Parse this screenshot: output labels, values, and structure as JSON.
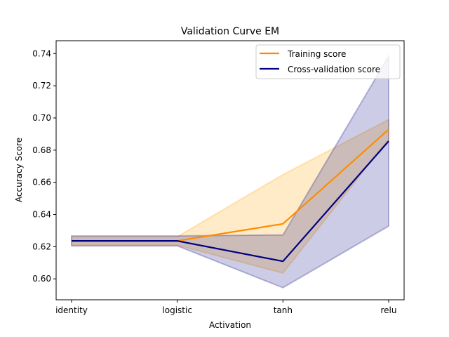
{
  "chart_data": {
    "type": "line",
    "title": "Validation Curve EM",
    "xlabel": "Activation",
    "ylabel": "Accuracy Score",
    "categories": [
      "identity",
      "logistic",
      "tanh",
      "relu"
    ],
    "ylim": [
      0.587,
      0.748
    ],
    "yticks": [
      0.6,
      0.62,
      0.64,
      0.66,
      0.68,
      0.7,
      0.72,
      0.74
    ],
    "grid": false,
    "legend_position": "top-right",
    "series": [
      {
        "name": "Training score",
        "color": "#ff8c00",
        "values": [
          0.6236,
          0.6236,
          0.6342,
          0.6929
        ],
        "band_lower": [
          0.621,
          0.621,
          0.6036,
          0.6868
        ],
        "band_upper": [
          0.6262,
          0.6262,
          0.6648,
          0.699
        ]
      },
      {
        "name": "Cross-validation score",
        "color": "#000080",
        "values": [
          0.6236,
          0.6236,
          0.6109,
          0.6856
        ],
        "band_lower": [
          0.6205,
          0.6205,
          0.5945,
          0.6328
        ],
        "band_upper": [
          0.6267,
          0.6267,
          0.6273,
          0.7384
        ]
      }
    ]
  }
}
